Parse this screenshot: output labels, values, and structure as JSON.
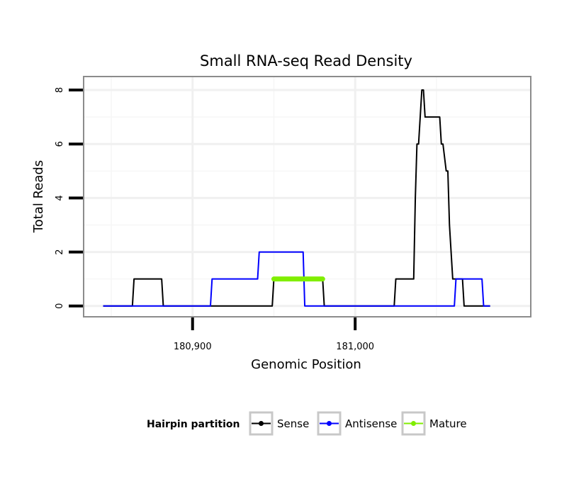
{
  "chart_data": {
    "type": "line",
    "title": "Small RNA-seq Read Density",
    "xlabel": "Genomic Position",
    "ylabel": "Total Reads",
    "xlim": [
      180833,
      181108
    ],
    "ylim": [
      -0.4,
      8.5
    ],
    "x_ticks": [
      {
        "value": 180900,
        "label": "180,900"
      },
      {
        "value": 181000,
        "label": "181,000"
      }
    ],
    "y_ticks": [
      {
        "value": 0,
        "label": "0"
      },
      {
        "value": 2,
        "label": "2"
      },
      {
        "value": 4,
        "label": "4"
      },
      {
        "value": 6,
        "label": "6"
      },
      {
        "value": 8,
        "label": "8"
      }
    ],
    "grid": true,
    "legend": {
      "title": "Hairpin partition",
      "position": "bottom",
      "entries": [
        {
          "label": "Sense",
          "color": "#000000"
        },
        {
          "label": "Antisense",
          "color": "#0000ff"
        },
        {
          "label": "Mature",
          "color": "#80ee00"
        }
      ]
    },
    "series": [
      {
        "name": "Sense",
        "color": "#000000",
        "x": [
          180845,
          180863,
          180864,
          180881,
          180882,
          180949,
          180950,
          180980,
          180981,
          181024,
          181025,
          181036,
          181037,
          181038,
          181039,
          181041,
          181042,
          181043,
          181044,
          181047,
          181052,
          181053,
          181054,
          181056,
          181057,
          181058,
          181060,
          181061,
          181066,
          181067,
          181070,
          181071,
          181083
        ],
        "y": [
          0,
          0,
          1,
          1,
          0,
          0,
          1,
          1,
          0,
          0,
          1,
          1,
          4,
          6,
          6,
          8,
          8,
          7,
          7,
          7,
          7,
          6,
          6,
          5,
          5,
          3,
          1,
          1,
          1,
          0,
          0,
          0,
          0
        ]
      },
      {
        "name": "Antisense",
        "color": "#0000ff",
        "x": [
          180845,
          180911,
          180912,
          180940,
          180941,
          180968,
          180969,
          181061,
          181062,
          181078,
          181079,
          181083
        ],
        "y": [
          0,
          0,
          1,
          1,
          2,
          2,
          0,
          0,
          1,
          1,
          0,
          0
        ]
      },
      {
        "name": "Mature",
        "color": "#80ee00",
        "x": [
          180950,
          180980
        ],
        "y": [
          1,
          1
        ]
      }
    ]
  }
}
